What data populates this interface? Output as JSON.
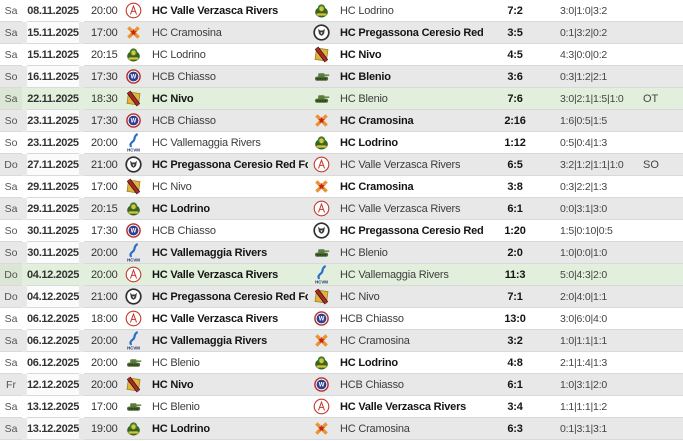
{
  "schedule": {
    "extra_labels": {
      "overtime": "OT",
      "shootout": "SO"
    },
    "colors": {
      "row_white": "#ffffff",
      "row_gray": "#e8e8e8",
      "row_highlight": "#e3efdd",
      "divider_bar": "#3c3c3c",
      "row_border": "#d9d9d9"
    },
    "teams": {
      "valle-verzasca": {
        "name": "HC Valle Verzasca Rivers",
        "logo": "valle-verzasca-logo-icon",
        "primary": "#c23b2e",
        "secondary": "#ffffff"
      },
      "lodrino": {
        "name": "HC Lodrino",
        "logo": "lodrino-logo-icon",
        "primary": "#3f7a2e",
        "secondary": "#d8c43c"
      },
      "cramosina": {
        "name": "HC Cramosina",
        "logo": "cramosina-logo-icon",
        "primary": "#e8952f",
        "secondary": "#cc2020"
      },
      "pregassona": {
        "name": "HC Pregassona Ceresio Red Fox",
        "logo": "pregassona-fox-logo-icon",
        "primary": "#2f2f2f",
        "secondary": "#ffffff"
      },
      "nivo": {
        "name": "HC Nivo",
        "logo": "nivo-logo-icon",
        "primary": "#e3b33c",
        "secondary": "#b5251f"
      },
      "chiasso": {
        "name": "HCB Chiasso",
        "logo": "chiasso-logo-icon",
        "primary": "#2e3f8f",
        "secondary": "#b62b2b"
      },
      "blenio": {
        "name": "HC Blenio",
        "logo": "blenio-tank-logo-icon",
        "primary": "#4e6b33",
        "secondary": "#2f421e"
      },
      "vallemaggia": {
        "name": "HC Vallemaggia Rivers",
        "logo": "vallemaggia-logo-icon",
        "primary": "#2a6fc4",
        "secondary": "#1c2f6e",
        "caption": "HCVM"
      }
    },
    "rows": [
      {
        "day": "Sa",
        "date": "08.11.2025",
        "time": "20:00",
        "home": "valle-verzasca",
        "away": "lodrino",
        "home_bold": true,
        "away_bold": false,
        "score": "7:2",
        "periods": "3:0|1:0|3:2",
        "extra": "",
        "highlight": false
      },
      {
        "day": "Sa",
        "date": "15.11.2025",
        "time": "17:00",
        "home": "cramosina",
        "away": "pregassona",
        "home_bold": false,
        "away_bold": true,
        "score": "3:5",
        "periods": "0:1|3:2|0:2",
        "extra": "",
        "highlight": false
      },
      {
        "day": "Sa",
        "date": "15.11.2025",
        "time": "20:15",
        "home": "lodrino",
        "away": "nivo",
        "home_bold": false,
        "away_bold": true,
        "score": "4:5",
        "periods": "4:3|0:0|0:2",
        "extra": "",
        "highlight": false
      },
      {
        "day": "So",
        "date": "16.11.2025",
        "time": "17:30",
        "home": "chiasso",
        "away": "blenio",
        "home_bold": false,
        "away_bold": true,
        "score": "3:6",
        "periods": "0:3|1:2|2:1",
        "extra": "",
        "highlight": false
      },
      {
        "day": "Sa",
        "date": "22.11.2025",
        "time": "18:30",
        "home": "nivo",
        "away": "blenio",
        "home_bold": true,
        "away_bold": false,
        "score": "7:6",
        "periods": "3:0|2:1|1:5|1:0",
        "extra": "OT",
        "highlight": true
      },
      {
        "day": "So",
        "date": "23.11.2025",
        "time": "17:30",
        "home": "chiasso",
        "away": "cramosina",
        "home_bold": false,
        "away_bold": true,
        "score": "2:16",
        "periods": "1:6|0:5|1:5",
        "extra": "",
        "highlight": false
      },
      {
        "day": "So",
        "date": "23.11.2025",
        "time": "20:00",
        "home": "vallemaggia",
        "away": "lodrino",
        "home_bold": false,
        "away_bold": true,
        "score": "1:12",
        "periods": "0:5|0:4|1:3",
        "extra": "",
        "highlight": false
      },
      {
        "day": "Do",
        "date": "27.11.2025",
        "time": "21:00",
        "home": "pregassona",
        "away": "valle-verzasca",
        "home_bold": true,
        "away_bold": false,
        "score": "6:5",
        "periods": "3:2|1:2|1:1|1:0",
        "extra": "SO",
        "highlight": false
      },
      {
        "day": "Sa",
        "date": "29.11.2025",
        "time": "17:00",
        "home": "nivo",
        "away": "cramosina",
        "home_bold": false,
        "away_bold": true,
        "score": "3:8",
        "periods": "0:3|2:2|1:3",
        "extra": "",
        "highlight": false
      },
      {
        "day": "Sa",
        "date": "29.11.2025",
        "time": "20:15",
        "home": "lodrino",
        "away": "valle-verzasca",
        "home_bold": true,
        "away_bold": false,
        "score": "6:1",
        "periods": "0:0|3:1|3:0",
        "extra": "",
        "highlight": false
      },
      {
        "day": "So",
        "date": "30.11.2025",
        "time": "17:30",
        "home": "chiasso",
        "away": "pregassona",
        "home_bold": false,
        "away_bold": true,
        "score": "1:20",
        "periods": "1:5|0:10|0:5",
        "extra": "",
        "highlight": false
      },
      {
        "day": "So",
        "date": "30.11.2025",
        "time": "20:00",
        "home": "vallemaggia",
        "away": "blenio",
        "home_bold": true,
        "away_bold": false,
        "score": "2:0",
        "periods": "1:0|0:0|1:0",
        "extra": "",
        "highlight": false
      },
      {
        "day": "Do",
        "date": "04.12.2025",
        "time": "20:00",
        "home": "valle-verzasca",
        "away": "vallemaggia",
        "home_bold": true,
        "away_bold": false,
        "score": "11:3",
        "periods": "5:0|4:3|2:0",
        "extra": "",
        "highlight": true
      },
      {
        "day": "Do",
        "date": "04.12.2025",
        "time": "21:00",
        "home": "pregassona",
        "away": "nivo",
        "home_bold": true,
        "away_bold": false,
        "score": "7:1",
        "periods": "2:0|4:0|1:1",
        "extra": "",
        "highlight": false
      },
      {
        "day": "Sa",
        "date": "06.12.2025",
        "time": "18:00",
        "home": "valle-verzasca",
        "away": "chiasso",
        "home_bold": true,
        "away_bold": false,
        "score": "13:0",
        "periods": "3:0|6:0|4:0",
        "extra": "",
        "highlight": false
      },
      {
        "day": "Sa",
        "date": "06.12.2025",
        "time": "20:00",
        "home": "vallemaggia",
        "away": "cramosina",
        "home_bold": true,
        "away_bold": false,
        "score": "3:2",
        "periods": "1:0|1:1|1:1",
        "extra": "",
        "highlight": false
      },
      {
        "day": "Sa",
        "date": "06.12.2025",
        "time": "20:00",
        "home": "blenio",
        "away": "lodrino",
        "home_bold": false,
        "away_bold": true,
        "score": "4:8",
        "periods": "2:1|1:4|1:3",
        "extra": "",
        "highlight": false
      },
      {
        "day": "Fr",
        "date": "12.12.2025",
        "time": "20:00",
        "home": "nivo",
        "away": "chiasso",
        "home_bold": true,
        "away_bold": false,
        "score": "6:1",
        "periods": "1:0|3:1|2:0",
        "extra": "",
        "highlight": false
      },
      {
        "day": "Sa",
        "date": "13.12.2025",
        "time": "17:00",
        "home": "blenio",
        "away": "valle-verzasca",
        "home_bold": false,
        "away_bold": true,
        "score": "3:4",
        "periods": "1:1|1:1|1:2",
        "extra": "",
        "highlight": false
      },
      {
        "day": "Sa",
        "date": "13.12.2025",
        "time": "19:00",
        "home": "lodrino",
        "away": "cramosina",
        "home_bold": true,
        "away_bold": false,
        "score": "6:3",
        "periods": "0:1|3:1|3:1",
        "extra": "",
        "highlight": false
      }
    ]
  }
}
